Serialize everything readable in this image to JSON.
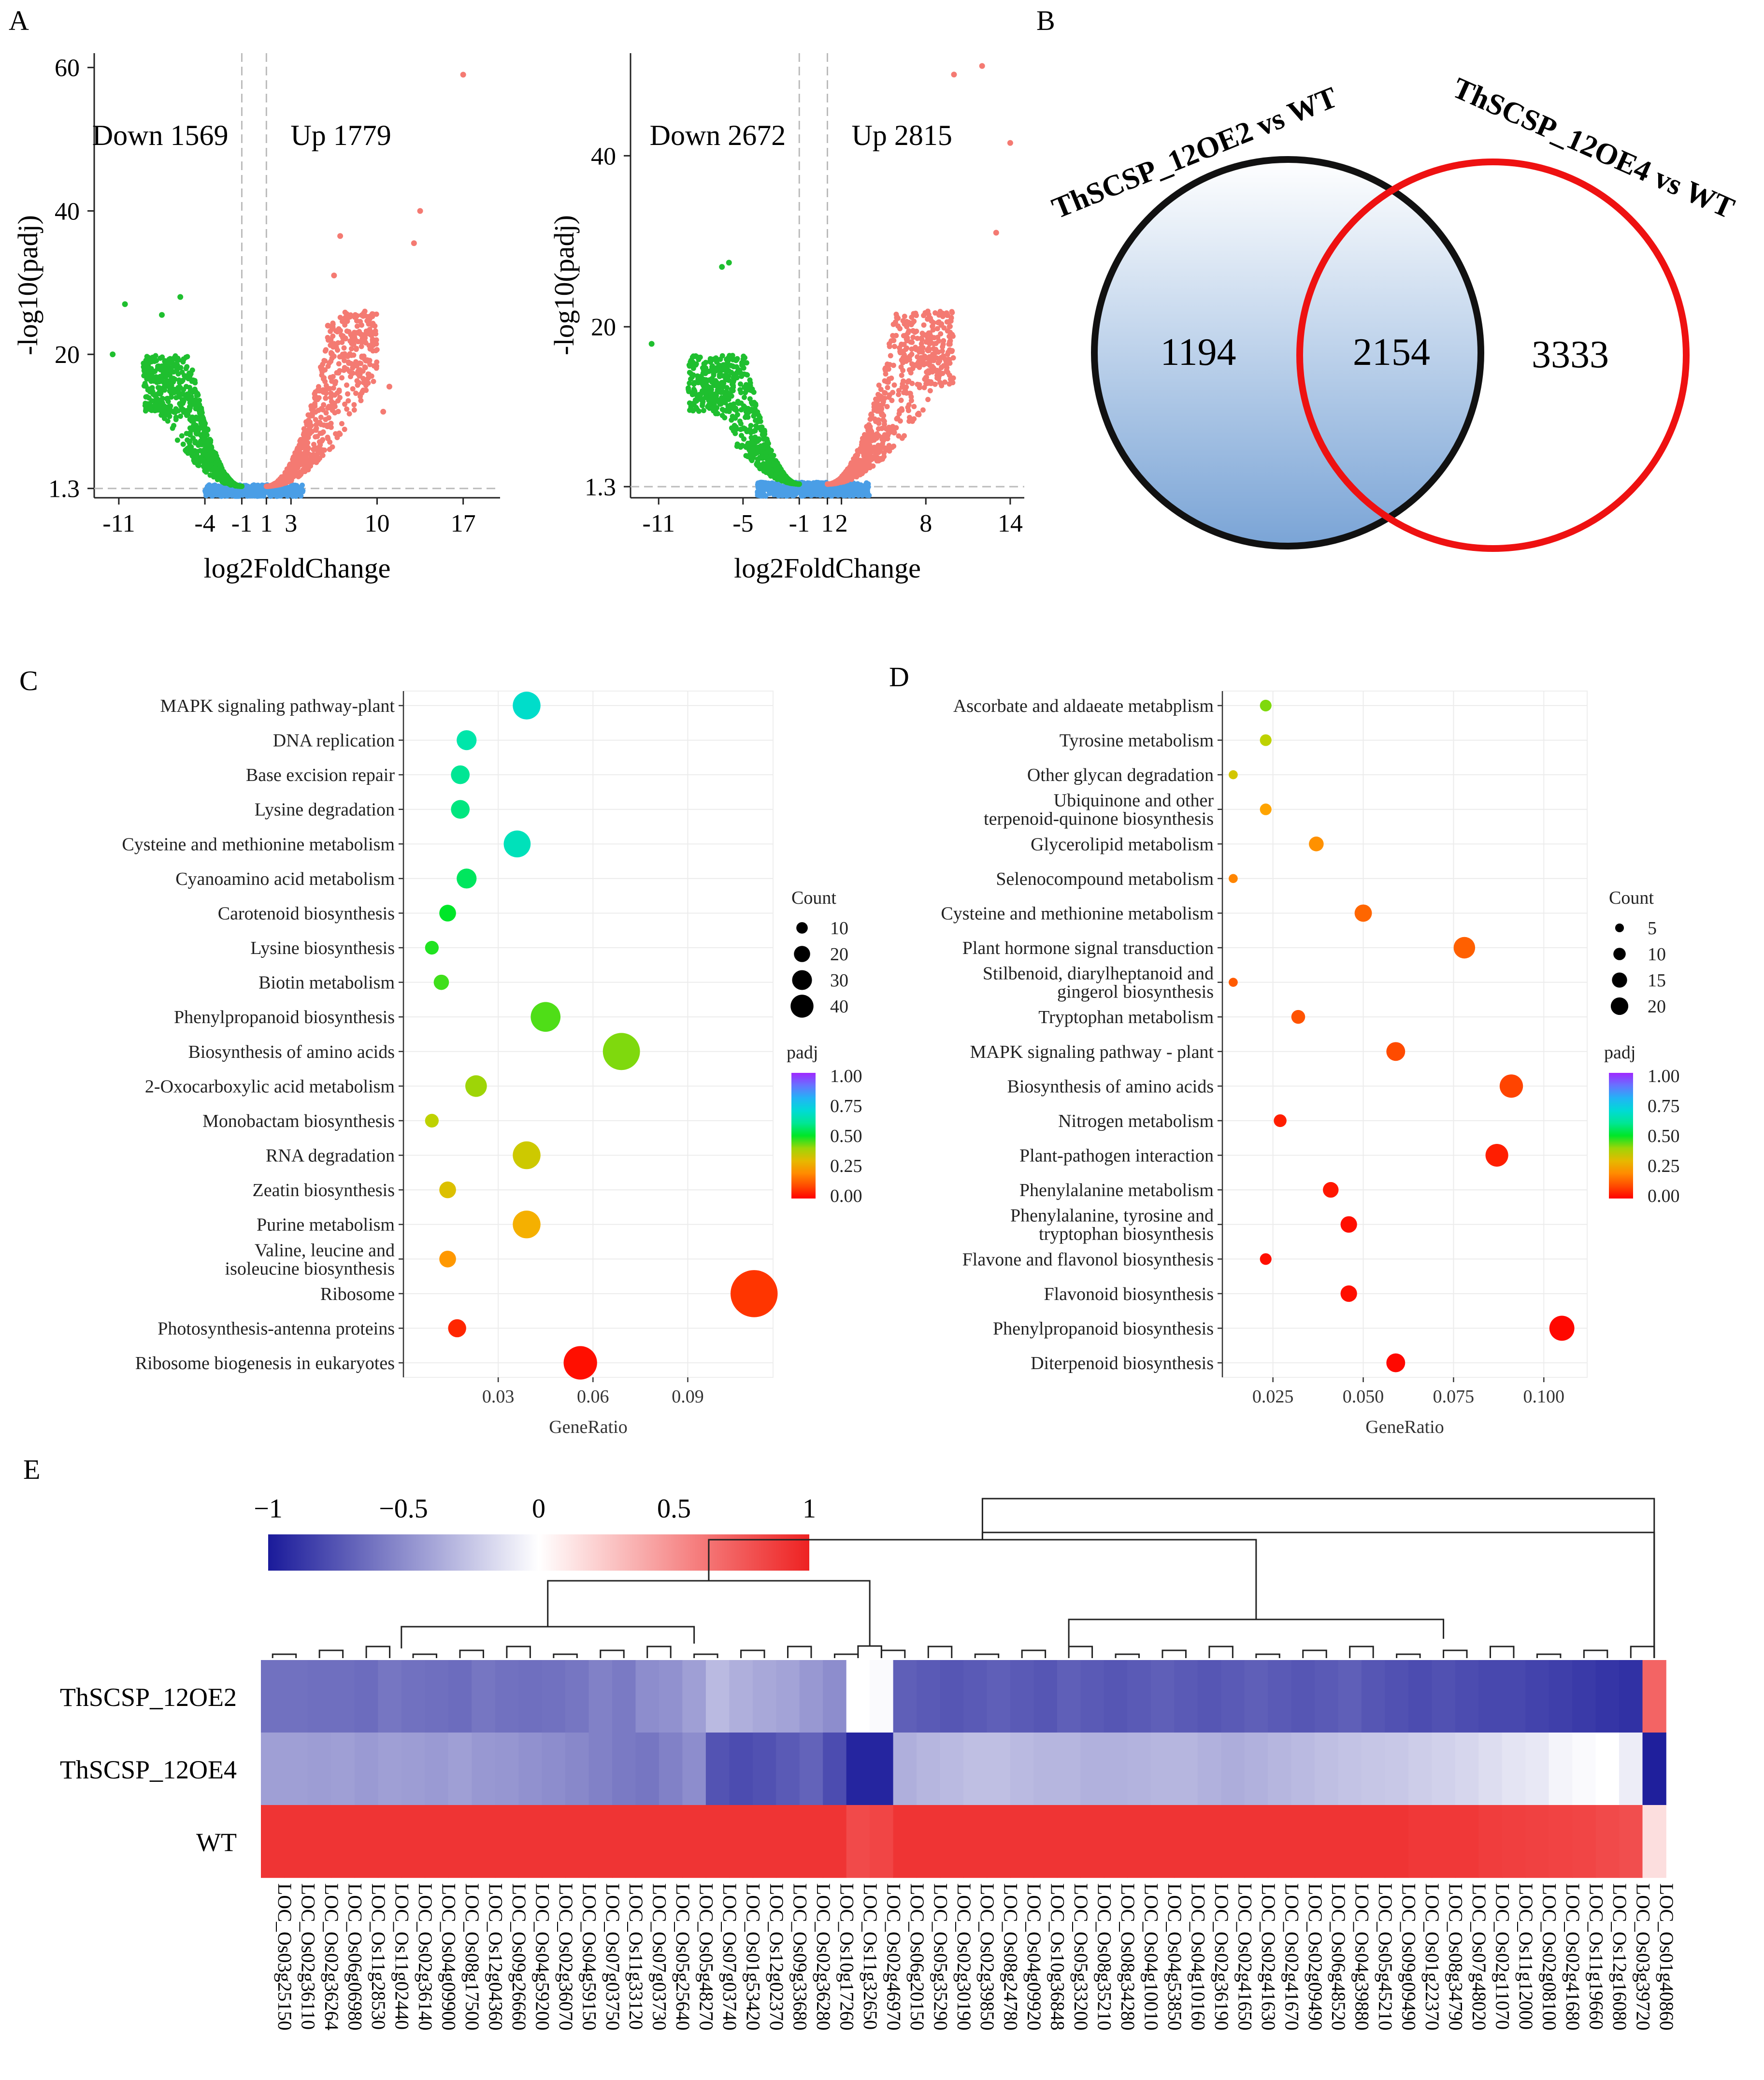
{
  "panel_labels": {
    "A": "A",
    "B": "B",
    "C": "C",
    "D": "D",
    "E": "E"
  },
  "colors": {
    "down": "#1fbf2f",
    "up": "#f47a72",
    "ns": "#4a9ee6",
    "venn_left": "#111111",
    "venn_right": "#ee1111",
    "venn_fill_top": "#ffffff",
    "venn_fill_bottom": "#7aa4d6",
    "heat_low": "#1a1a9a",
    "heat_mid": "#ffffff",
    "heat_high": "#ee2222"
  },
  "chart_data": [
    {
      "id": "volcano1",
      "type": "scatter",
      "xlabel": "log2FoldChange",
      "ylabel": "-log10(padj)",
      "xticks": [
        -11,
        -4,
        -1,
        1,
        3,
        10,
        17
      ],
      "yticks": [
        1.3,
        20,
        40,
        60
      ],
      "xlim": [
        -13,
        20
      ],
      "ylim": [
        0,
        62
      ],
      "down_label": "Down 1569",
      "up_label": "Up 1779",
      "down_count": 1569,
      "up_count": 1779,
      "thresholds": {
        "log2fc": [
          -1,
          1
        ],
        "padj": 1.3
      },
      "highlight_points": [
        [
          17,
          59
        ],
        [
          13.5,
          40
        ],
        [
          13,
          35.5
        ],
        [
          7,
          36.5
        ],
        [
          6.5,
          31
        ],
        [
          6,
          24
        ],
        [
          11,
          15.5
        ],
        [
          10.5,
          12
        ],
        [
          -10.5,
          27
        ],
        [
          -6,
          28
        ],
        [
          -7.5,
          25.5
        ],
        [
          -11.5,
          20
        ]
      ]
    },
    {
      "id": "volcano2",
      "type": "scatter",
      "xlabel": "log2FoldChange",
      "ylabel": "-log10(padj)",
      "xticks": [
        -11,
        -5,
        -1,
        1,
        2,
        8,
        14
      ],
      "yticks": [
        1.3,
        20,
        40
      ],
      "xlim": [
        -13,
        15
      ],
      "ylim": [
        0,
        52
      ],
      "down_label": "Down 2672",
      "up_label": "Up 2815",
      "down_count": 2672,
      "up_count": 2815,
      "thresholds": {
        "log2fc": [
          -1,
          1
        ],
        "padj": 1.3
      },
      "highlight_points": [
        [
          12,
          50.5
        ],
        [
          10,
          49.5
        ],
        [
          14,
          41.5
        ],
        [
          13,
          31
        ],
        [
          -6,
          27.5
        ],
        [
          -6.5,
          27
        ],
        [
          -11.5,
          18
        ]
      ]
    },
    {
      "id": "venn",
      "type": "venn",
      "sets": [
        {
          "name": "ThSCSP_12OE2 vs WT",
          "only": 1194
        },
        {
          "name": "ThSCSP_12OE4 vs WT",
          "only": 3333
        }
      ],
      "overlap": 2154
    },
    {
      "id": "kegg_c",
      "type": "scatter",
      "xlabel": "GeneRatio",
      "xticks": [
        0.03,
        0.06,
        0.09
      ],
      "xlim": [
        0.0,
        0.117
      ],
      "size_legend_title": "Count",
      "size_legend": [
        10,
        20,
        30,
        40
      ],
      "color_legend_title": "padj",
      "color_legend_ticks": [
        "1.00",
        "0.75",
        "0.50",
        "0.25",
        "0.00"
      ],
      "terms": [
        {
          "label": "MAPK signaling pathway-plant",
          "ratio": 0.039,
          "count": 33,
          "padj": 0.68
        },
        {
          "label": "DNA replication",
          "ratio": 0.02,
          "count": 17,
          "padj": 0.62
        },
        {
          "label": "Base excision repair",
          "ratio": 0.018,
          "count": 15,
          "padj": 0.6
        },
        {
          "label": "Lysine degradation",
          "ratio": 0.018,
          "count": 15,
          "padj": 0.58
        },
        {
          "label": "Cysteine and methionine metabolism",
          "ratio": 0.036,
          "count": 31,
          "padj": 0.65
        },
        {
          "label": "Cyanoamino acid metabolism",
          "ratio": 0.02,
          "count": 17,
          "padj": 0.55
        },
        {
          "label": "Carotenoid biosynthesis",
          "ratio": 0.014,
          "count": 12,
          "padj": 0.5
        },
        {
          "label": "Lysine biosynthesis",
          "ratio": 0.009,
          "count": 8,
          "padj": 0.48
        },
        {
          "label": "Biotin metabolism",
          "ratio": 0.012,
          "count": 10,
          "padj": 0.46
        },
        {
          "label": "Phenylpropanoid biosynthesis",
          "ratio": 0.045,
          "count": 38,
          "padj": 0.45
        },
        {
          "label": "Biosynthesis of amino acids",
          "ratio": 0.069,
          "count": 59,
          "padj": 0.42
        },
        {
          "label": "2-Oxocarboxylic acid metabolism",
          "ratio": 0.023,
          "count": 20,
          "padj": 0.4
        },
        {
          "label": "Monobactam biosynthesis",
          "ratio": 0.009,
          "count": 8,
          "padj": 0.38
        },
        {
          "label": "RNA degradation",
          "ratio": 0.039,
          "count": 33,
          "padj": 0.35
        },
        {
          "label": "Zeatin biosynthesis",
          "ratio": 0.014,
          "count": 12,
          "padj": 0.32
        },
        {
          "label": "Purine metabolism",
          "ratio": 0.039,
          "count": 33,
          "padj": 0.27
        },
        {
          "label": "Valine, leucine and isoleucine biosynthesis",
          "ratio": 0.014,
          "count": 12,
          "padj": 0.22
        },
        {
          "label": "Ribosome",
          "ratio": 0.111,
          "count": 95,
          "padj": 0.07
        },
        {
          "label": "Photosynthesis-antenna proteins",
          "ratio": 0.017,
          "count": 14,
          "padj": 0.05
        },
        {
          "label": "Ribosome biogenesis in eukaryotes",
          "ratio": 0.056,
          "count": 48,
          "padj": 0.02
        }
      ]
    },
    {
      "id": "kegg_d",
      "type": "scatter",
      "xlabel": "GeneRatio",
      "xticks": [
        0.025,
        0.05,
        0.075,
        0.1
      ],
      "xtick_labels": [
        "0.025",
        "0.050",
        "0.075",
        "0.100"
      ],
      "xlim": [
        0.011,
        0.112
      ],
      "size_legend_title": "Count",
      "size_legend": [
        5,
        10,
        15,
        20
      ],
      "color_legend_title": "padj",
      "color_legend_ticks": [
        "1.00",
        "0.75",
        "0.50",
        "0.25",
        "0.00"
      ],
      "terms": [
        {
          "label": "Ascorbate and aldaeate metabplism",
          "ratio": 0.023,
          "count": 5,
          "padj": 0.42
        },
        {
          "label": "Tyrosine metabolism",
          "ratio": 0.023,
          "count": 5,
          "padj": 0.38
        },
        {
          "label": "Other glycan degradation",
          "ratio": 0.014,
          "count": 3,
          "padj": 0.34
        },
        {
          "label": "Ubiquinone and other terpenoid-quinone biosynthesis",
          "ratio": 0.023,
          "count": 5,
          "padj": 0.24
        },
        {
          "label": "Glycerolipid metabolism",
          "ratio": 0.037,
          "count": 8,
          "padj": 0.21
        },
        {
          "label": "Selenocompound metabolism",
          "ratio": 0.014,
          "count": 3,
          "padj": 0.19
        },
        {
          "label": "Cysteine and methionine metabolism",
          "ratio": 0.05,
          "count": 11,
          "padj": 0.14
        },
        {
          "label": "Plant hormone signal transduction",
          "ratio": 0.078,
          "count": 17,
          "padj": 0.13
        },
        {
          "label": "Stilbenoid, diarylheptanoid and gingerol biosynthesis",
          "ratio": 0.014,
          "count": 3,
          "padj": 0.12
        },
        {
          "label": "Tryptophan metabolism",
          "ratio": 0.032,
          "count": 7,
          "padj": 0.11
        },
        {
          "label": "MAPK signaling pathway - plant",
          "ratio": 0.059,
          "count": 13,
          "padj": 0.1
        },
        {
          "label": "Biosynthesis of amino acids",
          "ratio": 0.091,
          "count": 20,
          "padj": 0.09
        },
        {
          "label": "Nitrogen metabolism",
          "ratio": 0.027,
          "count": 6,
          "padj": 0.04
        },
        {
          "label": "Plant-pathogen interaction",
          "ratio": 0.087,
          "count": 19,
          "padj": 0.04
        },
        {
          "label": "Phenylalanine metabolism",
          "ratio": 0.041,
          "count": 9,
          "padj": 0.03
        },
        {
          "label": "Phenylalanine, tyrosine and tryptophan biosynthesis",
          "ratio": 0.046,
          "count": 10,
          "padj": 0.02
        },
        {
          "label": "Flavone and flavonol biosynthesis",
          "ratio": 0.023,
          "count": 5,
          "padj": 0.02
        },
        {
          "label": "Flavonoid biosynthesis",
          "ratio": 0.046,
          "count": 10,
          "padj": 0.02
        },
        {
          "label": "Phenylpropanoid biosynthesis",
          "ratio": 0.105,
          "count": 23,
          "padj": 0.01
        },
        {
          "label": "Diterpenoid biosynthesis",
          "ratio": 0.059,
          "count": 13,
          "padj": 0.01
        }
      ]
    },
    {
      "id": "heatmap",
      "type": "heatmap",
      "colorbar_ticks": [
        "−1",
        "−0.5",
        "0",
        "0.5",
        "1"
      ],
      "colorbar_values": [
        -1,
        -0.5,
        0,
        0.5,
        1
      ],
      "rows": [
        "ThSCSP_12OE2",
        "ThSCSP_12OE4",
        "WT"
      ],
      "cols": [
        "LOC_Os03g25150",
        "LOC_Os02g36110",
        "LOC_Os02g36264",
        "LOC_Os06g06980",
        "LOC_Os11g28530",
        "LOC_Os11g02440",
        "LOC_Os02g36140",
        "LOC_Os04g09900",
        "LOC_Os08g17500",
        "LOC_Os12g04360",
        "LOC_Os09g26660",
        "LOC_Os04g59200",
        "LOC_Os02g36070",
        "LOC_Os04g59150",
        "LOC_Os07g03750",
        "LOC_Os11g33120",
        "LOC_Os07g03730",
        "LOC_Os05g25640",
        "LOC_Os05g48270",
        "LOC_Os07g03740",
        "LOC_Os01g53420",
        "LOC_Os12g02370",
        "LOC_Os09g33680",
        "LOC_Os02g36280",
        "LOC_Os10g17260",
        "LOC_Os11g32650",
        "LOC_Os02g46970",
        "LOC_Os06g20150",
        "LOC_Os05g35290",
        "LOC_Os02g30190",
        "LOC_Os02g39850",
        "LOC_Os08g24780",
        "LOC_Os04g09920",
        "LOC_Os10g36848",
        "LOC_Os05g33200",
        "LOC_Os08g35210",
        "LOC_Os08g34280",
        "LOC_Os04g10010",
        "LOC_Os04g53850",
        "LOC_Os04g10160",
        "LOC_Os02g36190",
        "LOC_Os02g41650",
        "LOC_Os02g41630",
        "LOC_Os02g41670",
        "LOC_Os02g09490",
        "LOC_Os06g48520",
        "LOC_Os04g39880",
        "LOC_Os05g45210",
        "LOC_Os09g09490",
        "LOC_Os01g22370",
        "LOC_Os08g34790",
        "LOC_Os07g48020",
        "LOC_Os02g11070",
        "LOC_Os11g12000",
        "LOC_Os02g08100",
        "LOC_Os02g41680",
        "LOC_Os11g19660",
        "LOC_Os12g16080",
        "LOC_Os03g39720",
        "LOC_Os01g40860"
      ],
      "values": [
        [
          -0.62,
          -0.62,
          -0.63,
          -0.63,
          -0.64,
          -0.6,
          -0.62,
          -0.63,
          -0.64,
          -0.6,
          -0.62,
          -0.63,
          -0.62,
          -0.6,
          -0.55,
          -0.58,
          -0.5,
          -0.48,
          -0.42,
          -0.3,
          -0.35,
          -0.38,
          -0.4,
          -0.45,
          -0.5,
          0.0,
          -0.02,
          -0.7,
          -0.72,
          -0.74,
          -0.72,
          -0.7,
          -0.72,
          -0.74,
          -0.7,
          -0.72,
          -0.74,
          -0.72,
          -0.7,
          -0.72,
          -0.74,
          -0.72,
          -0.7,
          -0.72,
          -0.74,
          -0.72,
          -0.7,
          -0.74,
          -0.76,
          -0.78,
          -0.76,
          -0.78,
          -0.8,
          -0.8,
          -0.82,
          -0.84,
          -0.86,
          -0.88,
          -0.9,
          0.7
        ],
        [
          -0.42,
          -0.42,
          -0.43,
          -0.42,
          -0.44,
          -0.42,
          -0.43,
          -0.44,
          -0.42,
          -0.45,
          -0.46,
          -0.48,
          -0.5,
          -0.52,
          -0.55,
          -0.58,
          -0.6,
          -0.55,
          -0.5,
          -0.75,
          -0.78,
          -0.76,
          -0.72,
          -0.68,
          -0.78,
          -0.95,
          -0.95,
          -0.35,
          -0.32,
          -0.3,
          -0.28,
          -0.28,
          -0.3,
          -0.32,
          -0.32,
          -0.34,
          -0.34,
          -0.33,
          -0.32,
          -0.32,
          -0.34,
          -0.36,
          -0.34,
          -0.32,
          -0.3,
          -0.28,
          -0.26,
          -0.25,
          -0.24,
          -0.22,
          -0.2,
          -0.18,
          -0.15,
          -0.12,
          -0.1,
          -0.05,
          -0.02,
          0.0,
          -0.08,
          -0.98
        ],
        [
          0.92,
          0.92,
          0.92,
          0.92,
          0.92,
          0.92,
          0.92,
          0.92,
          0.92,
          0.92,
          0.92,
          0.92,
          0.92,
          0.92,
          0.92,
          0.92,
          0.92,
          0.92,
          0.92,
          0.92,
          0.92,
          0.92,
          0.92,
          0.92,
          0.92,
          0.82,
          0.84,
          0.92,
          0.92,
          0.92,
          0.92,
          0.92,
          0.92,
          0.92,
          0.92,
          0.92,
          0.92,
          0.92,
          0.92,
          0.92,
          0.92,
          0.92,
          0.92,
          0.92,
          0.92,
          0.92,
          0.92,
          0.92,
          0.92,
          0.9,
          0.9,
          0.9,
          0.88,
          0.87,
          0.86,
          0.85,
          0.84,
          0.82,
          0.8,
          0.15
        ]
      ]
    }
  ]
}
